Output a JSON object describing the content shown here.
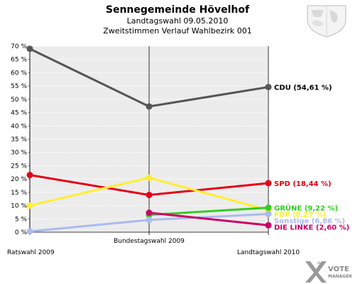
{
  "header": {
    "title": "Sennegemeinde Hövelhof",
    "subtitle_1": "Landtagswahl 09.05.2010",
    "subtitle_2": "Zweitstimmen Verlauf Wahlbezirk 001"
  },
  "branding": {
    "logo_line_1": "VOTE",
    "logo_line_2": "MANAGER"
  },
  "chart_data": {
    "type": "line",
    "categories": [
      "Ratswahl 2009",
      "Bundestagswahl 2009",
      "Landtagswahl 2010"
    ],
    "ylim": [
      0,
      70
    ],
    "yticks": [
      "0 %",
      "5 %",
      "10 %",
      "15 %",
      "20 %",
      "25 %",
      "30 %",
      "35 %",
      "40 %",
      "45 %",
      "50 %",
      "55 %",
      "60 %",
      "65 %",
      "70 %"
    ],
    "grid": true,
    "series": [
      {
        "name": "CDU",
        "end_label": "CDU (54,61 %)",
        "color": "#555555",
        "label_color": "#000000",
        "values": [
          69.0,
          47.3,
          54.61
        ]
      },
      {
        "name": "SPD",
        "end_label": "SPD (18,44 %)",
        "color": "#e2001a",
        "label_color": "#e2001a",
        "values": [
          21.5,
          14.0,
          18.44
        ]
      },
      {
        "name": "FDP",
        "end_label": "FDP (8,27 %)",
        "color": "#ffee33",
        "label_color": "#ffee33",
        "values": [
          10.0,
          20.5,
          8.27
        ]
      },
      {
        "name": "GRÜNE",
        "end_label": "GRÜNE (9,22 %)",
        "color": "#33cc22",
        "label_color": "#33cc22",
        "values": [
          null,
          6.5,
          9.22
        ]
      },
      {
        "name": "Sonstige",
        "end_label": "Sonstige (6,86 %)",
        "color": "#aabbee",
        "label_color": "#aabbee",
        "values": [
          0.3,
          4.6,
          6.86
        ]
      },
      {
        "name": "DIE LINKE",
        "end_label": "DIE LINKE (2,60 %)",
        "color": "#cc0066",
        "label_color": "#cc0066",
        "values": [
          null,
          7.3,
          2.6
        ]
      }
    ]
  }
}
